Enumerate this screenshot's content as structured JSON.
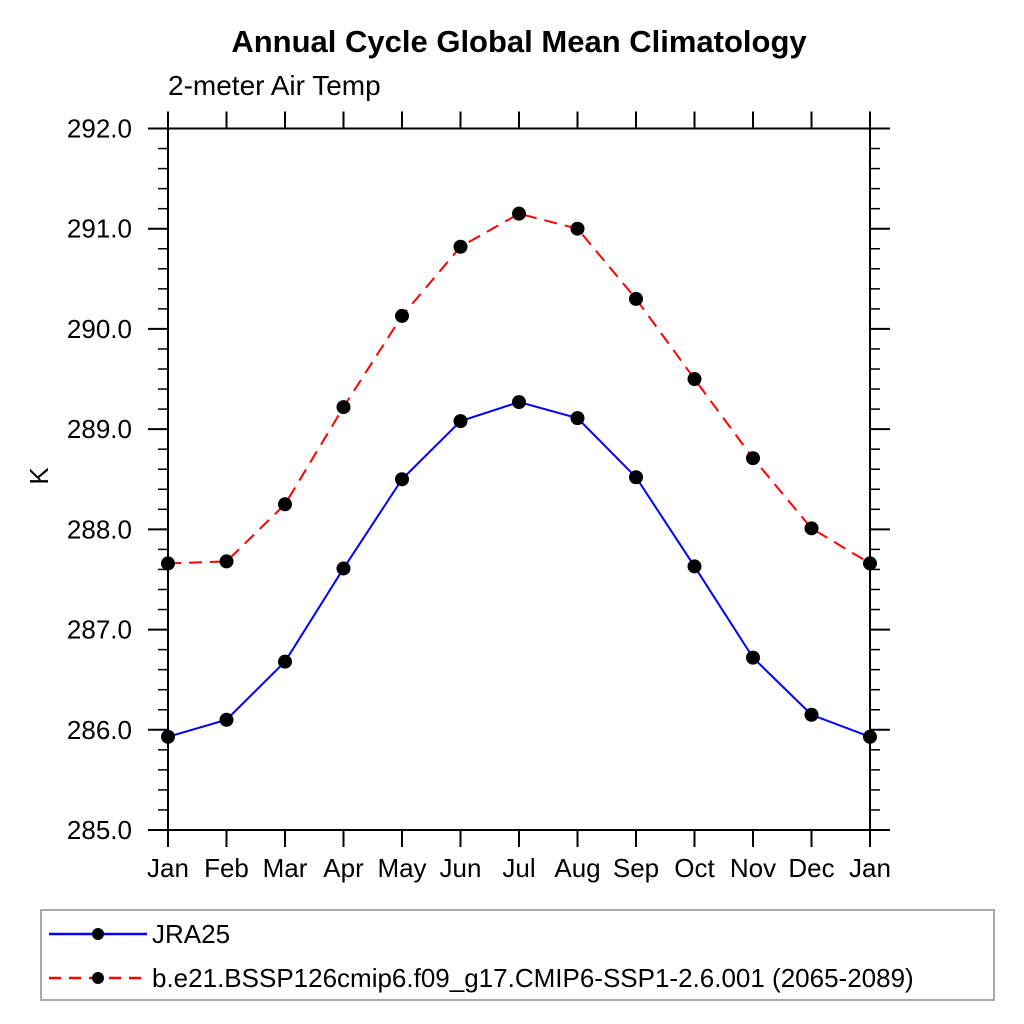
{
  "chart_data": {
    "type": "line",
    "title": "Annual Cycle Global Mean Climatology",
    "subtitle": "2-meter Air Temp",
    "ylabel": "K",
    "xlabel": "",
    "categories": [
      "Jan",
      "Feb",
      "Mar",
      "Apr",
      "May",
      "Jun",
      "Jul",
      "Aug",
      "Sep",
      "Oct",
      "Nov",
      "Dec",
      "Jan"
    ],
    "ylim": [
      285.0,
      292.0
    ],
    "ytick_major": 1.0,
    "ytick_minor": 0.2,
    "ytick_labels": [
      "285.0",
      "286.0",
      "287.0",
      "288.0",
      "289.0",
      "290.0",
      "291.0",
      "292.0"
    ],
    "grid": false,
    "frame_color": "#000000",
    "series": [
      {
        "name": "JRA25",
        "color": "#0000ff",
        "line_style": "solid",
        "marker": "filled-circle",
        "marker_color": "#000000",
        "values": [
          285.93,
          286.1,
          286.68,
          287.61,
          288.5,
          289.08,
          289.27,
          289.11,
          288.52,
          287.63,
          286.72,
          286.15,
          285.93
        ]
      },
      {
        "name": "b.e21.BSSP126cmip6.f09_g17.CMIP6-SSP1-2.6.001 (2065-2089)",
        "color": "#ff0000",
        "line_style": "dashed",
        "marker": "filled-circle",
        "marker_color": "#000000",
        "values": [
          287.66,
          287.68,
          288.25,
          289.22,
          290.13,
          290.82,
          291.15,
          291.0,
          290.3,
          289.5,
          288.71,
          288.01,
          287.66
        ]
      }
    ],
    "legend_position": "bottom-box",
    "legend_border_color": "#a9a9a9"
  }
}
